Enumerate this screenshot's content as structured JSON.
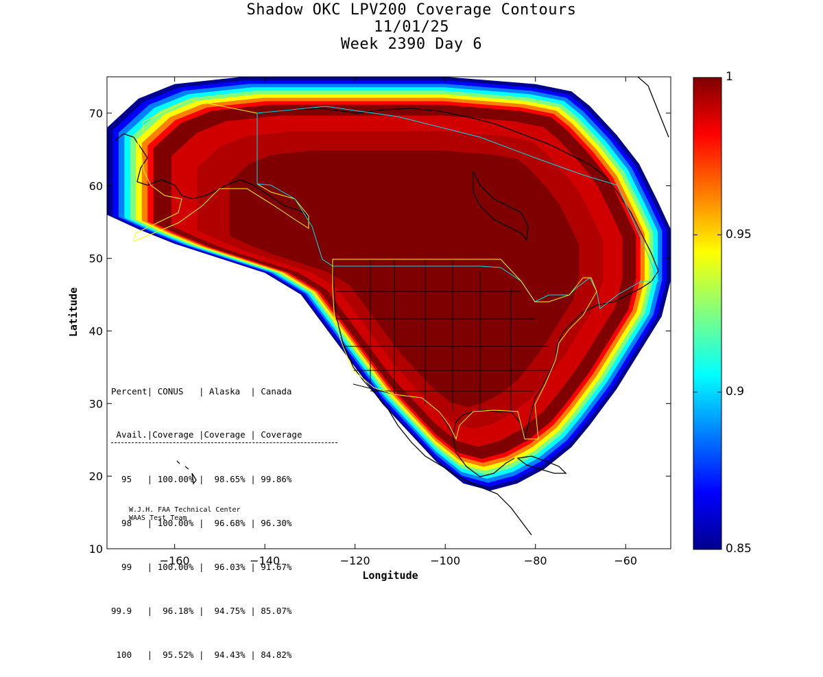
{
  "title": {
    "line1": "Shadow OKC LPV200 Coverage Contours",
    "line2": "11/01/25",
    "line3": "Week 2390 Day 6"
  },
  "axes": {
    "xlabel": "Longitude",
    "ylabel": "Latitude",
    "xlim": [
      -175,
      -50
    ],
    "ylim": [
      10,
      75
    ],
    "xticks": [
      -160,
      -140,
      -120,
      -100,
      -80,
      -60
    ],
    "yticks": [
      10,
      20,
      30,
      40,
      50,
      60,
      70
    ]
  },
  "colorbar": {
    "min": 0.85,
    "max": 1,
    "labels": [
      "1",
      "0.95",
      "0.9",
      "0.85"
    ],
    "label_values": [
      1,
      0.95,
      0.9,
      0.85
    ],
    "colors": [
      "#7f0000",
      "#ff0000",
      "#ff8000",
      "#ffff00",
      "#80ff80",
      "#00ffff",
      "#0080ff",
      "#0000ff",
      "#00008f"
    ]
  },
  "stats_table": {
    "header1": [
      "Percent|",
      " CONUS   |",
      " Alaska  |",
      " Canada"
    ],
    "header2": [
      " Avail.|",
      "Coverage |",
      "Coverage |",
      " Coverage"
    ],
    "rows": [
      {
        "avail": "  95  ",
        "conus": "100.00%",
        "alaska": " 98.65%",
        "canada": "99.86%"
      },
      {
        "avail": "  98  ",
        "conus": "100.00%",
        "alaska": " 96.68%",
        "canada": "96.30%"
      },
      {
        "avail": "  99  ",
        "conus": "100.00%",
        "alaska": " 96.03%",
        "canada": "91.67%"
      },
      {
        "avail": "99.9  ",
        "conus": " 96.18%",
        "alaska": " 94.75%",
        "canada": "85.07%"
      },
      {
        "avail": " 100  ",
        "conus": " 95.52%",
        "alaska": " 94.43%",
        "canada": "84.82%"
      }
    ]
  },
  "credit": {
    "line1": "W.J.H. FAA Technical Center",
    "line2": "WAAS Test Team"
  },
  "chart_data": {
    "type": "heatmap",
    "title": "Shadow OKC LPV200 Coverage Contours",
    "xlabel": "Longitude",
    "ylabel": "Latitude",
    "xlim": [
      -175,
      -50
    ],
    "ylim": [
      10,
      75
    ],
    "colorbar_range": [
      0.85,
      1
    ],
    "coverage_region_outline": [
      [
        -175,
        68
      ],
      [
        -168,
        72
      ],
      [
        -160,
        74
      ],
      [
        -145,
        75
      ],
      [
        -125,
        75
      ],
      [
        -100,
        75
      ],
      [
        -80,
        74
      ],
      [
        -72,
        73
      ],
      [
        -68,
        71
      ],
      [
        -62,
        67
      ],
      [
        -57,
        63
      ],
      [
        -53,
        58
      ],
      [
        -50,
        54
      ],
      [
        -50,
        47
      ],
      [
        -52,
        42
      ],
      [
        -56,
        38
      ],
      [
        -62,
        32
      ],
      [
        -68,
        27
      ],
      [
        -72,
        24
      ],
      [
        -78,
        21
      ],
      [
        -84,
        19
      ],
      [
        -90,
        18
      ],
      [
        -96,
        19
      ],
      [
        -102,
        22
      ],
      [
        -108,
        26
      ],
      [
        -114,
        30
      ],
      [
        -120,
        35
      ],
      [
        -126,
        40
      ],
      [
        -132,
        45
      ],
      [
        -140,
        48
      ],
      [
        -150,
        50
      ],
      [
        -160,
        52
      ],
      [
        -168,
        54
      ],
      [
        -175,
        56
      ]
    ],
    "coverage_value_core": 1.0,
    "coverage_value_edge": 0.85
  }
}
